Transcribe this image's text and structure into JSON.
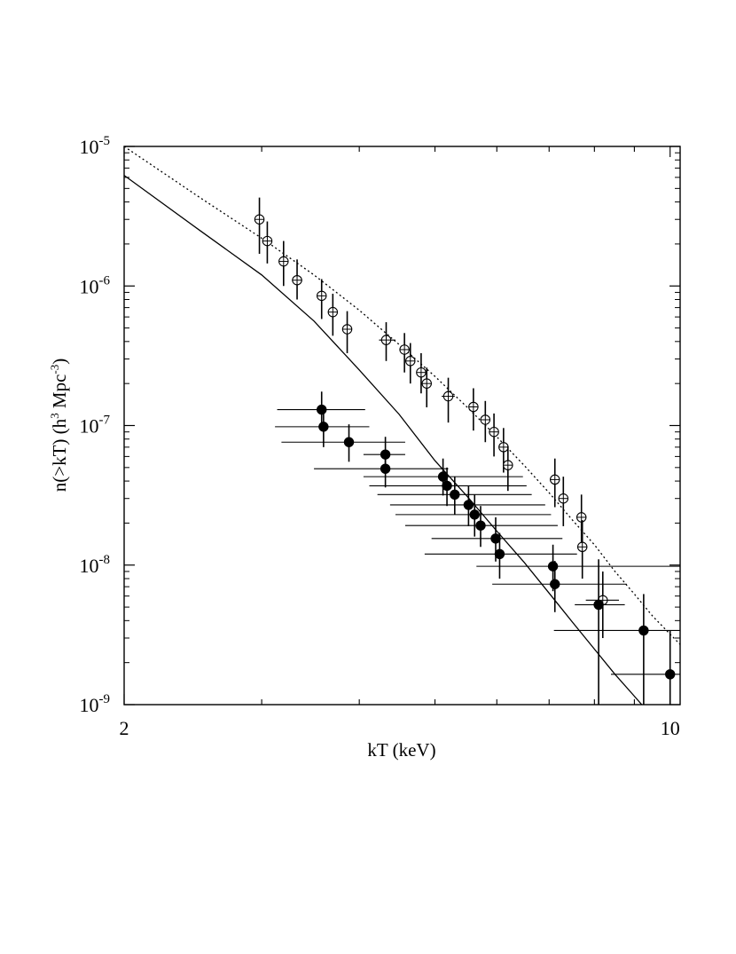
{
  "chart_data": {
    "type": "scatter",
    "xscale": "log",
    "yscale": "log",
    "xlim": [
      2,
      10.3
    ],
    "ylim": [
      1e-09,
      1e-05
    ],
    "xlabel": "kT (keV)",
    "ylabel": "n(>kT) (h³ Mpc⁻³)",
    "ylabel_parts": {
      "a": "n(>kT) (h",
      "b": "3",
      "c": " Mpc",
      "d": "-3",
      "e": ")"
    },
    "x_tick_labels": [
      {
        "value": 2,
        "label": "2"
      },
      {
        "value": 10,
        "label": "10"
      }
    ],
    "y_tick_labels": [
      {
        "value": 1e-05,
        "base": "10",
        "exp": "-5"
      },
      {
        "value": 1e-06,
        "base": "10",
        "exp": "-6"
      },
      {
        "value": 1e-07,
        "base": "10",
        "exp": "-7"
      },
      {
        "value": 1e-08,
        "base": "10",
        "exp": "-8"
      },
      {
        "value": 1e-09,
        "base": "10",
        "exp": "-9"
      }
    ],
    "grid": false,
    "legend": "none",
    "series": [
      {
        "marker": "open-circle-cross",
        "points": [
          {
            "x": 2.98,
            "y": 3e-06,
            "ylo": 1.7e-06,
            "yhi": 4.3e-06,
            "xlo": 2.98,
            "xhi": 2.98
          },
          {
            "x": 3.05,
            "y": 2.1e-06,
            "ylo": 1.45e-06,
            "yhi": 2.9e-06,
            "xlo": 3.05,
            "xhi": 3.05
          },
          {
            "x": 3.2,
            "y": 1.5e-06,
            "ylo": 1e-06,
            "yhi": 2.1e-06,
            "xlo": 3.2,
            "xhi": 3.2
          },
          {
            "x": 3.33,
            "y": 1.1e-06,
            "ylo": 8e-07,
            "yhi": 1.55e-06,
            "xlo": 3.28,
            "xhi": 3.38
          },
          {
            "x": 3.58,
            "y": 8.5e-07,
            "ylo": 5.8e-07,
            "yhi": 1.12e-06,
            "xlo": 3.58,
            "xhi": 3.58
          },
          {
            "x": 3.7,
            "y": 6.5e-07,
            "ylo": 4.4e-07,
            "yhi": 8.8e-07,
            "xlo": 3.7,
            "xhi": 3.7
          },
          {
            "x": 3.86,
            "y": 4.9e-07,
            "ylo": 3.3e-07,
            "yhi": 6.6e-07,
            "xlo": 3.86,
            "xhi": 3.86
          },
          {
            "x": 4.33,
            "y": 4.1e-07,
            "ylo": 2.9e-07,
            "yhi": 5.5e-07,
            "xlo": 4.24,
            "xhi": 4.45
          },
          {
            "x": 4.57,
            "y": 3.5e-07,
            "ylo": 2.4e-07,
            "yhi": 4.6e-07,
            "xlo": 4.57,
            "xhi": 4.57
          },
          {
            "x": 4.65,
            "y": 2.9e-07,
            "ylo": 2e-07,
            "yhi": 3.9e-07,
            "xlo": 4.65,
            "xhi": 4.65
          },
          {
            "x": 4.8,
            "y": 2.4e-07,
            "ylo": 1.7e-07,
            "yhi": 3.3e-07,
            "xlo": 4.8,
            "xhi": 4.8
          },
          {
            "x": 4.88,
            "y": 2e-07,
            "ylo": 1.35e-07,
            "yhi": 2.6e-07,
            "xlo": 4.88,
            "xhi": 4.88
          },
          {
            "x": 5.2,
            "y": 1.62e-07,
            "ylo": 1.05e-07,
            "yhi": 2.2e-07,
            "xlo": 5.1,
            "xhi": 5.3
          },
          {
            "x": 5.6,
            "y": 1.36e-07,
            "ylo": 9.2e-08,
            "yhi": 1.85e-07,
            "xlo": 5.6,
            "xhi": 5.6
          },
          {
            "x": 5.8,
            "y": 1.1e-07,
            "ylo": 7.6e-08,
            "yhi": 1.5e-07,
            "xlo": 5.8,
            "xhi": 5.8
          },
          {
            "x": 5.95,
            "y": 9e-08,
            "ylo": 6e-08,
            "yhi": 1.22e-07,
            "xlo": 5.95,
            "xhi": 5.95
          },
          {
            "x": 6.12,
            "y": 7e-08,
            "ylo": 4.6e-08,
            "yhi": 9.6e-08,
            "xlo": 6.12,
            "xhi": 6.12
          },
          {
            "x": 6.2,
            "y": 5.2e-08,
            "ylo": 3.4e-08,
            "yhi": 7.1e-08,
            "xlo": 6.2,
            "xhi": 6.2
          },
          {
            "x": 7.12,
            "y": 4.1e-08,
            "ylo": 2.6e-08,
            "yhi": 5.8e-08,
            "xlo": 7.12,
            "xhi": 7.12
          },
          {
            "x": 7.3,
            "y": 3e-08,
            "ylo": 1.9e-08,
            "yhi": 4.3e-08,
            "xlo": 7.3,
            "xhi": 7.3
          },
          {
            "x": 7.7,
            "y": 2.2e-08,
            "ylo": 1.35e-08,
            "yhi": 3.2e-08,
            "xlo": 7.7,
            "xhi": 7.7
          },
          {
            "x": 7.72,
            "y": 1.35e-08,
            "ylo": 8e-09,
            "yhi": 2.1e-08,
            "xlo": 7.72,
            "xhi": 7.72
          },
          {
            "x": 8.2,
            "y": 5.6e-09,
            "ylo": 3e-09,
            "yhi": 9e-09,
            "xlo": 7.8,
            "xhi": 8.6
          }
        ]
      },
      {
        "marker": "filled-circle",
        "points": [
          {
            "x": 3.58,
            "y": 1.3e-07,
            "ylo": 9.5e-08,
            "yhi": 1.75e-07,
            "xlo": 3.14,
            "xhi": 4.07
          },
          {
            "x": 3.6,
            "y": 9.8e-08,
            "ylo": 7e-08,
            "yhi": 1.35e-07,
            "xlo": 3.12,
            "xhi": 4.12
          },
          {
            "x": 3.88,
            "y": 7.6e-08,
            "ylo": 5.5e-08,
            "yhi": 1.02e-07,
            "xlo": 3.18,
            "xhi": 4.58
          },
          {
            "x": 4.32,
            "y": 6.2e-08,
            "ylo": 4.5e-08,
            "yhi": 8.3e-08,
            "xlo": 4.05,
            "xhi": 4.58
          },
          {
            "x": 4.32,
            "y": 4.9e-08,
            "ylo": 3.6e-08,
            "yhi": 6.6e-08,
            "xlo": 3.5,
            "xhi": 5.2
          },
          {
            "x": 5.12,
            "y": 4.3e-08,
            "ylo": 3.15e-08,
            "yhi": 5.8e-08,
            "xlo": 4.05,
            "xhi": 6.48
          },
          {
            "x": 5.18,
            "y": 3.7e-08,
            "ylo": 2.65e-08,
            "yhi": 5e-08,
            "xlo": 4.12,
            "xhi": 6.55
          },
          {
            "x": 5.3,
            "y": 3.2e-08,
            "ylo": 2.3e-08,
            "yhi": 4.3e-08,
            "xlo": 4.22,
            "xhi": 6.65
          },
          {
            "x": 5.52,
            "y": 2.7e-08,
            "ylo": 1.9e-08,
            "yhi": 3.7e-08,
            "xlo": 4.38,
            "xhi": 6.92
          },
          {
            "x": 5.62,
            "y": 2.3e-08,
            "ylo": 1.6e-08,
            "yhi": 3.2e-08,
            "xlo": 4.45,
            "xhi": 7.04
          },
          {
            "x": 5.72,
            "y": 1.92e-08,
            "ylo": 1.35e-08,
            "yhi": 2.65e-08,
            "xlo": 4.58,
            "xhi": 7.18
          },
          {
            "x": 5.98,
            "y": 1.55e-08,
            "ylo": 1.06e-08,
            "yhi": 2.2e-08,
            "xlo": 4.95,
            "xhi": 7.28
          },
          {
            "x": 6.05,
            "y": 1.2e-08,
            "ylo": 8e-09,
            "yhi": 1.7e-08,
            "xlo": 4.85,
            "xhi": 7.6
          },
          {
            "x": 7.08,
            "y": 9.8e-09,
            "ylo": 6.5e-09,
            "yhi": 1.4e-08,
            "xlo": 5.65,
            "xhi": 10.3
          },
          {
            "x": 7.12,
            "y": 7.3e-09,
            "ylo": 4.6e-09,
            "yhi": 1.07e-08,
            "xlo": 5.92,
            "xhi": 8.8
          },
          {
            "x": 8.1,
            "y": 5.2e-09,
            "ylo": 1e-09,
            "yhi": 1.1e-08,
            "xlo": 7.55,
            "xhi": 8.75
          },
          {
            "x": 9.25,
            "y": 3.4e-09,
            "ylo": 1e-09,
            "yhi": 6.2e-09,
            "xlo": 7.1,
            "xhi": 10.3
          },
          {
            "x": 10.0,
            "y": 1.65e-09,
            "ylo": 1e-09,
            "yhi": 3.4e-09,
            "xlo": 8.4,
            "xhi": 10.3
          }
        ]
      }
    ],
    "curves": [
      {
        "style": "solid",
        "points": [
          [
            2.0,
            6.2e-06
          ],
          [
            2.5,
            2.5e-06
          ],
          [
            3.0,
            1.2e-06
          ],
          [
            3.5,
            5.6e-07
          ],
          [
            4.0,
            2.5e-07
          ],
          [
            4.5,
            1.2e-07
          ],
          [
            5.0,
            5.6e-08
          ],
          [
            5.5,
            3.1e-08
          ],
          [
            6.0,
            1.75e-08
          ],
          [
            6.5,
            1.05e-08
          ],
          [
            7.0,
            6.3e-09
          ],
          [
            7.5,
            3.9e-09
          ],
          [
            8.0,
            2.5e-09
          ],
          [
            8.5,
            1.65e-09
          ],
          [
            9.0,
            1.15e-09
          ],
          [
            9.35,
            9e-10
          ]
        ]
      },
      {
        "style": "dotted",
        "points": [
          [
            2.0,
            1e-05
          ],
          [
            2.5,
            4.3e-06
          ],
          [
            3.0,
            2.2e-06
          ],
          [
            3.5,
            1.2e-06
          ],
          [
            4.0,
            6.7e-07
          ],
          [
            4.5,
            3.8e-07
          ],
          [
            5.0,
            2.25e-07
          ],
          [
            5.5,
            1.35e-07
          ],
          [
            6.0,
            8.3e-08
          ],
          [
            6.5,
            5.2e-08
          ],
          [
            7.0,
            3.3e-08
          ],
          [
            7.5,
            2.1e-08
          ],
          [
            8.0,
            1.4e-08
          ],
          [
            8.5,
            9e-09
          ],
          [
            9.0,
            6.2e-09
          ],
          [
            9.5,
            4.3e-09
          ],
          [
            10.3,
            2.7e-09
          ]
        ]
      }
    ]
  }
}
